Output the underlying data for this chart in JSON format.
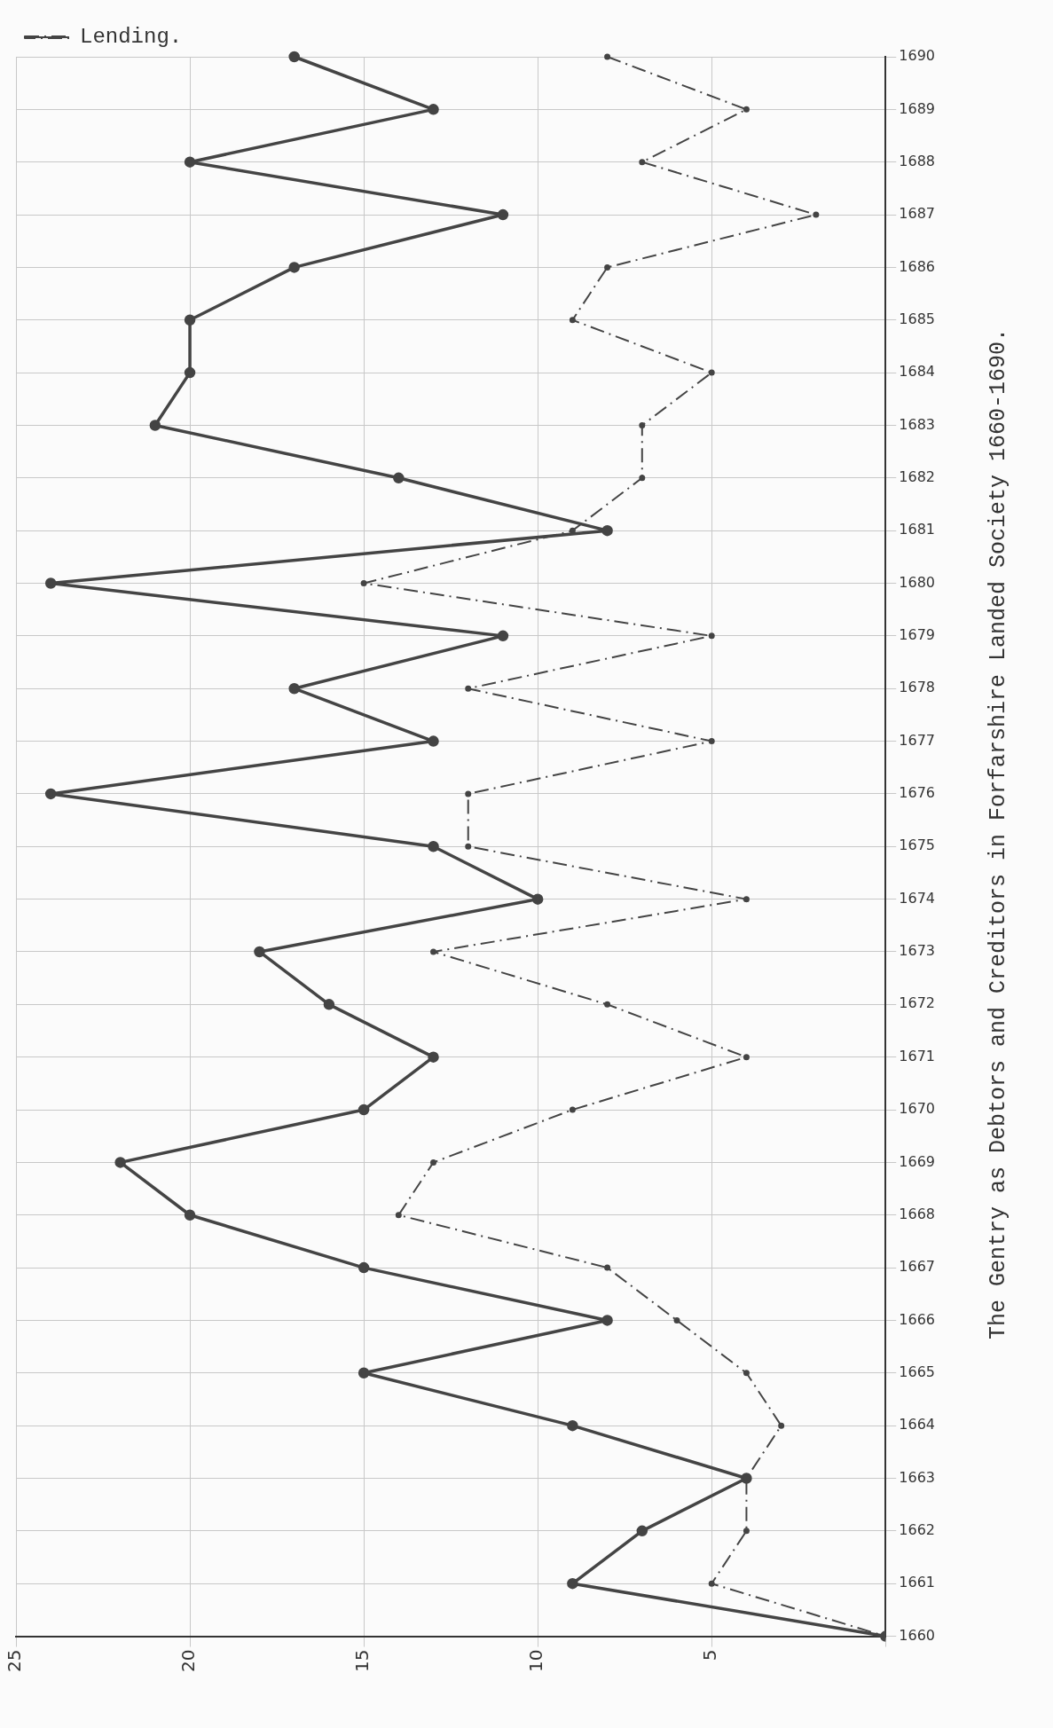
{
  "chart_data": {
    "type": "line",
    "title": "The Gentry as Debtors and Creditors in Forfarshire Landed Society 1660-1690.",
    "categories": [
      "1690",
      "1689",
      "1688",
      "1687",
      "1686",
      "1685",
      "1684",
      "1683",
      "1682",
      "1681",
      "1680",
      "1679",
      "1678",
      "1677",
      "1676",
      "1675",
      "1674",
      "1673",
      "1672",
      "1671",
      "1670",
      "1669",
      "1668",
      "1667",
      "1666",
      "1665",
      "1664",
      "1663",
      "1662",
      "1661",
      "1660"
    ],
    "series": [
      {
        "color": "#444444",
        "line_style": "solid",
        "values": [
          17,
          13,
          20,
          11,
          17,
          20,
          20,
          21,
          14,
          8,
          24,
          11,
          17,
          13,
          24,
          13,
          10,
          18,
          16,
          13,
          15,
          22,
          20,
          15,
          8,
          15,
          9,
          4,
          7,
          9,
          0
        ]
      },
      {
        "name": "Lending.",
        "color": "#444444",
        "line_style": "dashed",
        "values": [
          8,
          4,
          7,
          2,
          8,
          9,
          5,
          7,
          7,
          9,
          15,
          5,
          12,
          5,
          12,
          12,
          4,
          13,
          8,
          4,
          9,
          13,
          14,
          8,
          6,
          4,
          3,
          4,
          4,
          5,
          0
        ]
      }
    ],
    "orientation": "horizontal",
    "xlim": [
      25,
      0
    ],
    "xticks": [
      {
        "value": 0,
        "label": null
      },
      5,
      10,
      15,
      20,
      25
    ],
    "grid": true,
    "legend": "top left",
    "marker": "circle"
  }
}
